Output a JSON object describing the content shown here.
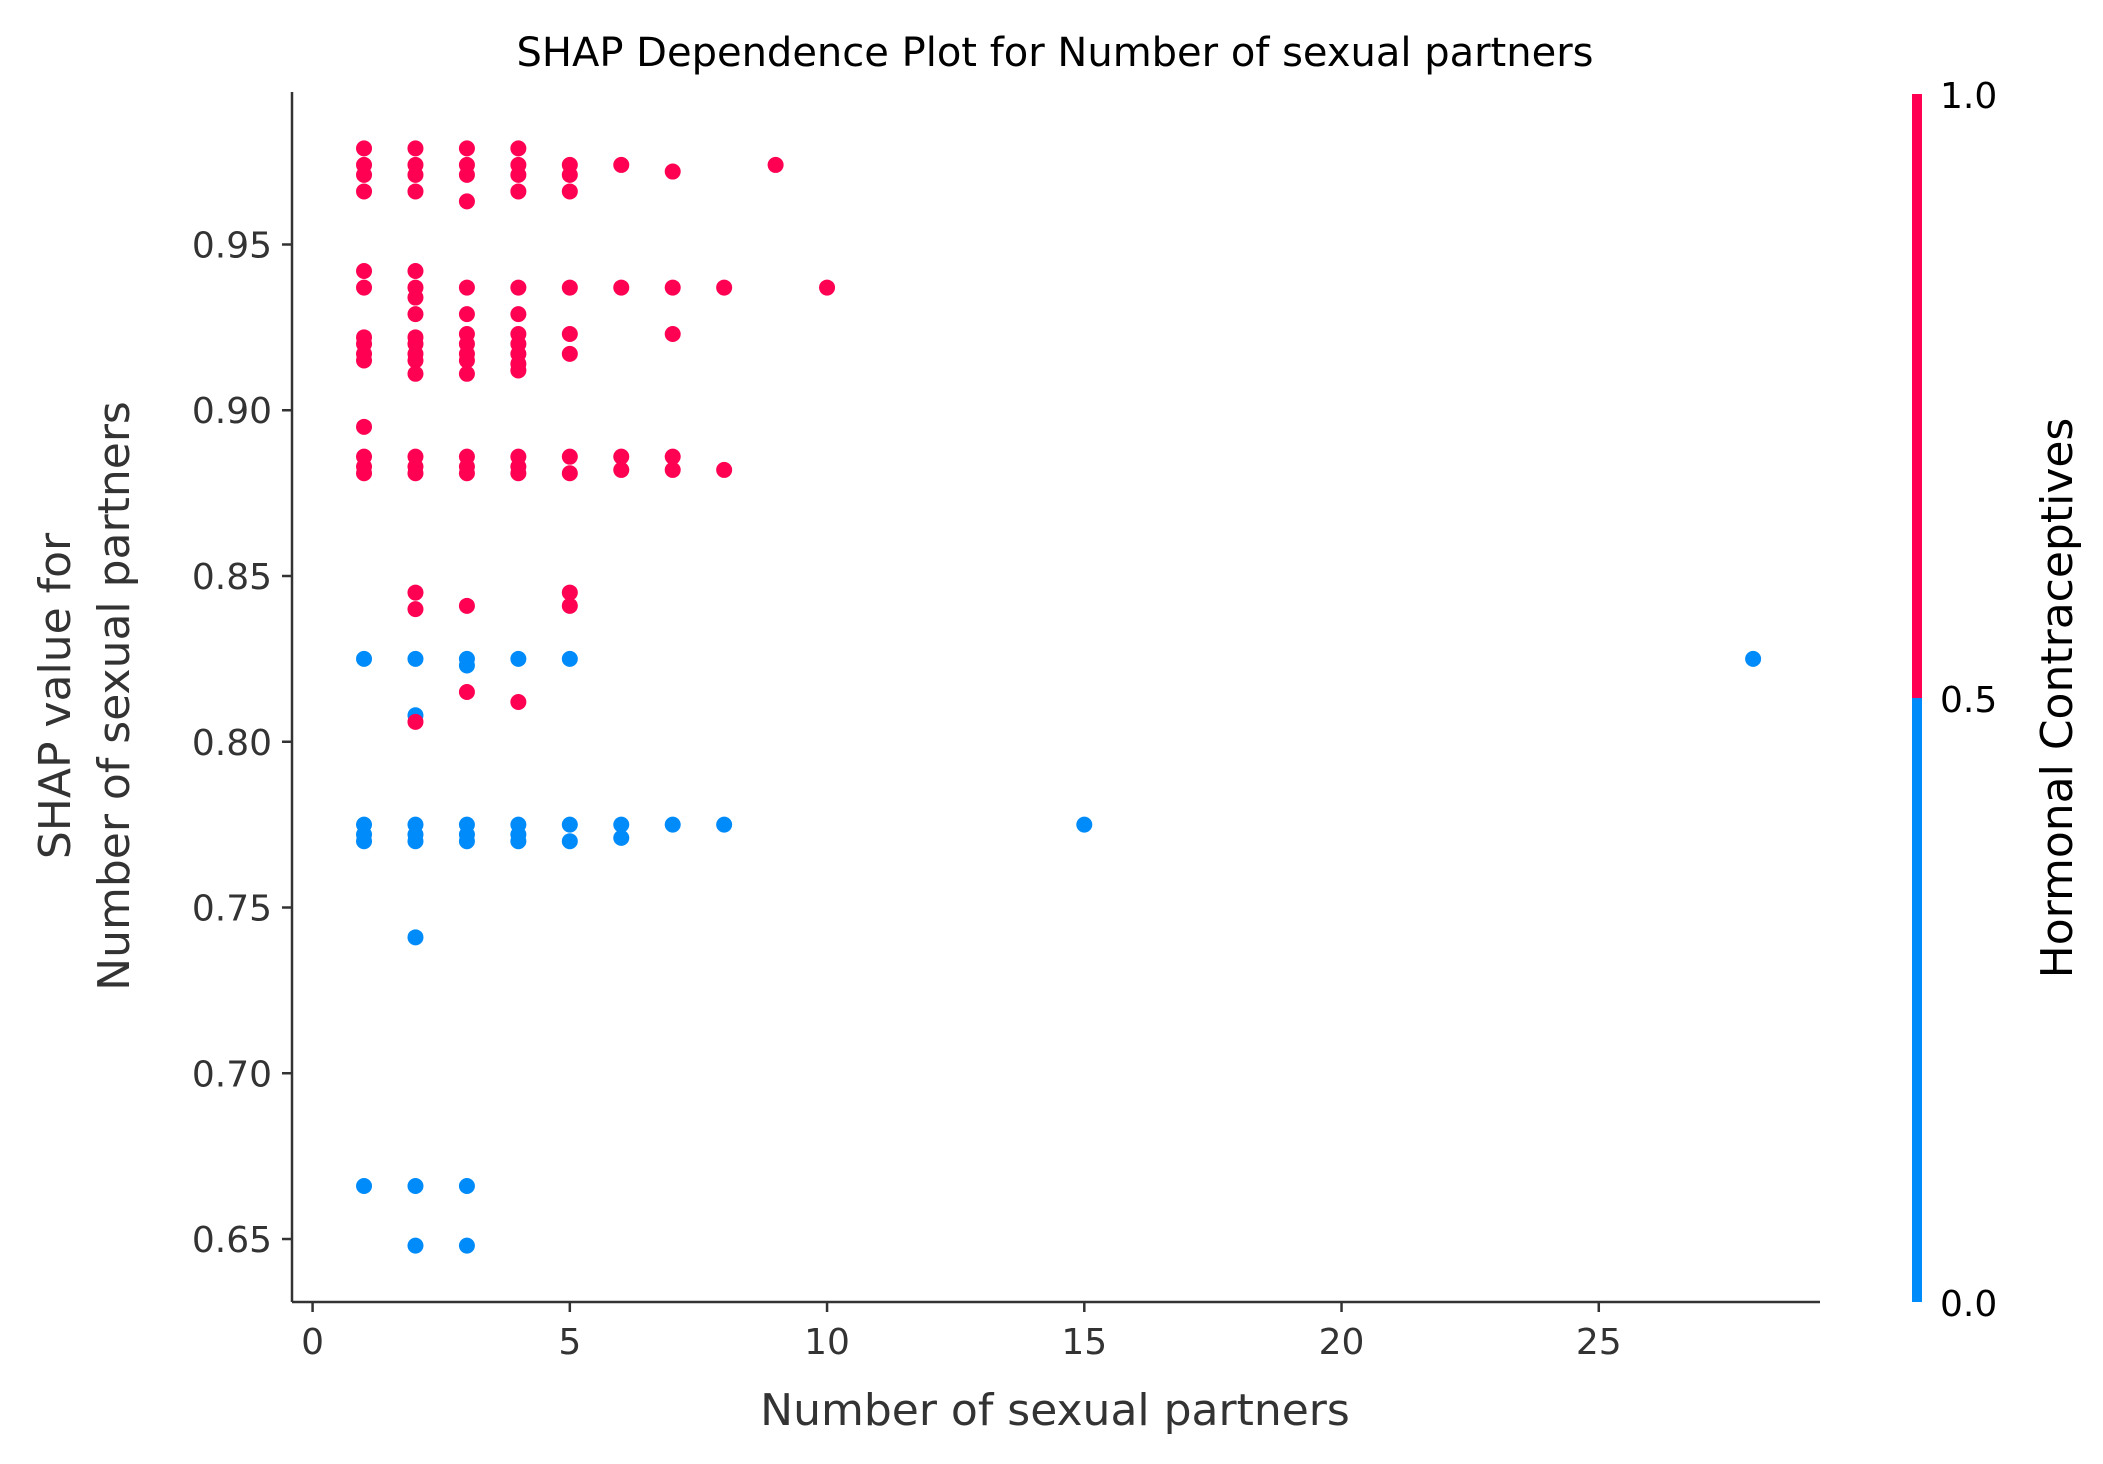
{
  "chart_data": {
    "type": "scatter",
    "title": "SHAP Dependence Plot for Number of sexual partners",
    "xlabel": "Number of sexual partners",
    "ylabel_lines": [
      "SHAP value for",
      "Number of sexual partners"
    ],
    "xlim": [
      -0.4,
      29.3
    ],
    "ylim": [
      0.631,
      0.996
    ],
    "x_ticks": [
      0,
      5,
      10,
      15,
      20,
      25
    ],
    "y_ticks": [
      0.65,
      0.7,
      0.75,
      0.8,
      0.85,
      0.9,
      0.95
    ],
    "y_tick_labels": [
      "0.65",
      "0.70",
      "0.75",
      "0.80",
      "0.85",
      "0.90",
      "0.95"
    ],
    "grid": false,
    "colorbar": {
      "label": "Hormonal Contraceptives",
      "ticks": [
        "0.0",
        "0.5",
        "1.0"
      ],
      "low_color": "#008bfb",
      "high_color": "#ff0052"
    },
    "series": [
      {
        "color": "#ff0052",
        "points": [
          [
            1,
            0.979
          ],
          [
            1,
            0.974
          ],
          [
            1,
            0.971
          ],
          [
            1,
            0.966
          ],
          [
            1,
            0.942
          ],
          [
            1,
            0.937
          ],
          [
            1,
            0.922
          ],
          [
            1,
            0.92
          ],
          [
            1,
            0.917
          ],
          [
            1,
            0.915
          ],
          [
            1,
            0.895
          ],
          [
            1,
            0.886
          ],
          [
            1,
            0.883
          ],
          [
            1,
            0.881
          ],
          [
            2,
            0.979
          ],
          [
            2,
            0.974
          ],
          [
            2,
            0.971
          ],
          [
            2,
            0.966
          ],
          [
            2,
            0.942
          ],
          [
            2,
            0.937
          ],
          [
            2,
            0.934
          ],
          [
            2,
            0.929
          ],
          [
            2,
            0.922
          ],
          [
            2,
            0.92
          ],
          [
            2,
            0.917
          ],
          [
            2,
            0.915
          ],
          [
            2,
            0.911
          ],
          [
            2,
            0.886
          ],
          [
            2,
            0.883
          ],
          [
            2,
            0.881
          ],
          [
            2,
            0.845
          ],
          [
            2,
            0.84
          ],
          [
            2,
            0.806
          ],
          [
            3,
            0.979
          ],
          [
            3,
            0.974
          ],
          [
            3,
            0.971
          ],
          [
            3,
            0.963
          ],
          [
            3,
            0.937
          ],
          [
            3,
            0.929
          ],
          [
            3,
            0.923
          ],
          [
            3,
            0.92
          ],
          [
            3,
            0.917
          ],
          [
            3,
            0.915
          ],
          [
            3,
            0.911
          ],
          [
            3,
            0.886
          ],
          [
            3,
            0.883
          ],
          [
            3,
            0.881
          ],
          [
            3,
            0.841
          ],
          [
            3,
            0.815
          ],
          [
            4,
            0.979
          ],
          [
            4,
            0.974
          ],
          [
            4,
            0.971
          ],
          [
            4,
            0.966
          ],
          [
            4,
            0.937
          ],
          [
            4,
            0.929
          ],
          [
            4,
            0.923
          ],
          [
            4,
            0.92
          ],
          [
            4,
            0.917
          ],
          [
            4,
            0.914
          ],
          [
            4,
            0.912
          ],
          [
            4,
            0.886
          ],
          [
            4,
            0.883
          ],
          [
            4,
            0.881
          ],
          [
            4,
            0.812
          ],
          [
            5,
            0.974
          ],
          [
            5,
            0.971
          ],
          [
            5,
            0.966
          ],
          [
            5,
            0.937
          ],
          [
            5,
            0.923
          ],
          [
            5,
            0.917
          ],
          [
            5,
            0.886
          ],
          [
            5,
            0.881
          ],
          [
            5,
            0.845
          ],
          [
            5,
            0.841
          ],
          [
            6,
            0.974
          ],
          [
            6,
            0.937
          ],
          [
            6,
            0.886
          ],
          [
            6,
            0.882
          ],
          [
            7,
            0.972
          ],
          [
            7,
            0.937
          ],
          [
            7,
            0.923
          ],
          [
            7,
            0.886
          ],
          [
            7,
            0.882
          ],
          [
            8,
            0.937
          ],
          [
            8,
            0.882
          ],
          [
            9,
            0.974
          ],
          [
            10,
            0.937
          ]
        ]
      },
      {
        "color": "#008bfb",
        "points": [
          [
            1,
            0.825
          ],
          [
            1,
            0.775
          ],
          [
            1,
            0.772
          ],
          [
            1,
            0.77
          ],
          [
            1,
            0.666
          ],
          [
            2,
            0.825
          ],
          [
            2,
            0.808
          ],
          [
            2,
            0.775
          ],
          [
            2,
            0.772
          ],
          [
            2,
            0.77
          ],
          [
            2,
            0.741
          ],
          [
            2,
            0.666
          ],
          [
            2,
            0.648
          ],
          [
            3,
            0.825
          ],
          [
            3,
            0.823
          ],
          [
            3,
            0.775
          ],
          [
            3,
            0.772
          ],
          [
            3,
            0.77
          ],
          [
            3,
            0.666
          ],
          [
            3,
            0.648
          ],
          [
            4,
            0.825
          ],
          [
            4,
            0.775
          ],
          [
            4,
            0.772
          ],
          [
            4,
            0.77
          ],
          [
            5,
            0.825
          ],
          [
            5,
            0.775
          ],
          [
            5,
            0.77
          ],
          [
            6,
            0.775
          ],
          [
            6,
            0.771
          ],
          [
            7,
            0.775
          ],
          [
            8,
            0.775
          ],
          [
            15,
            0.775
          ],
          [
            28,
            0.825
          ]
        ]
      }
    ]
  }
}
